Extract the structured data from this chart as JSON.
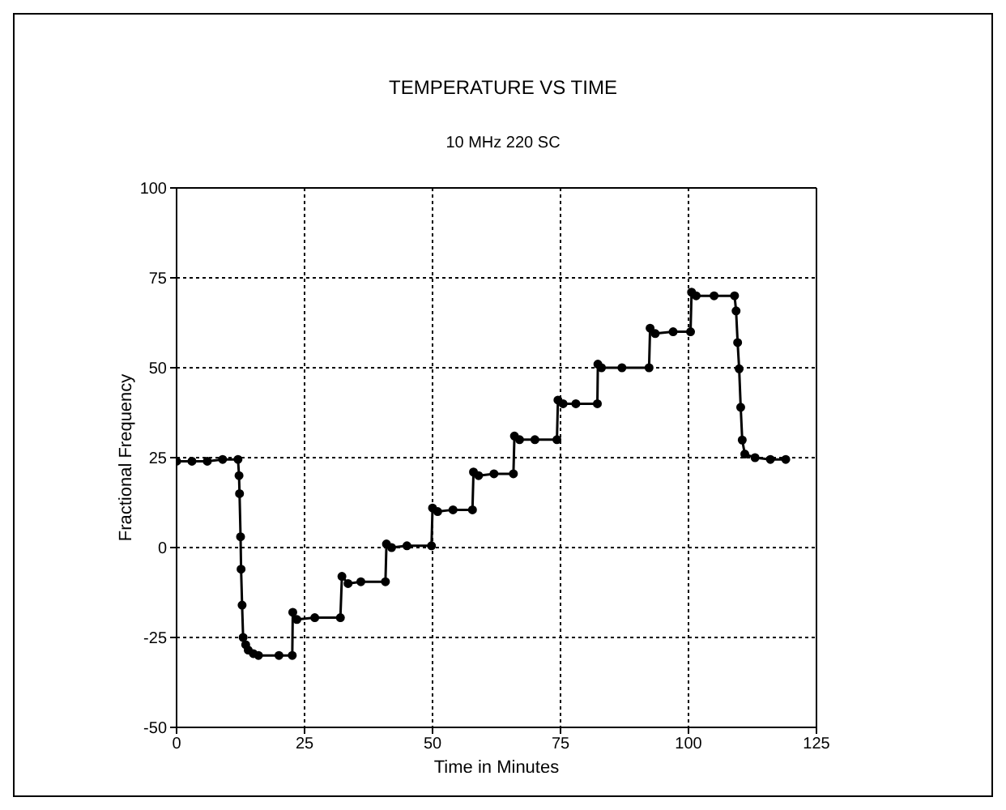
{
  "chart_data": {
    "type": "line",
    "title": "TEMPERATURE VS TIME",
    "subtitle": "10 MHz 220 SC",
    "xlabel": "Time in Minutes",
    "ylabel": "Fractional Frequency",
    "x": [
      0,
      3,
      6,
      9,
      12,
      12.2,
      12.3,
      12.5,
      12.6,
      12.8,
      13,
      13.5,
      14,
      15,
      16,
      20,
      22.6,
      22.7,
      23.5,
      27,
      32,
      32.3,
      33.5,
      36,
      40.8,
      41,
      42,
      45,
      49.8,
      50,
      51,
      54,
      57.8,
      58,
      59,
      62,
      65.8,
      66,
      67,
      70,
      74.3,
      74.5,
      75.5,
      78,
      82.2,
      82.3,
      83,
      87,
      92.3,
      92.5,
      93.5,
      97,
      100.4,
      100.6,
      101.5,
      105,
      109,
      109.3,
      109.6,
      109.9,
      110.2,
      110.5,
      111,
      113,
      116,
      119
    ],
    "values": [
      24,
      24,
      24,
      24.5,
      24.5,
      20,
      15,
      3,
      -6,
      -16,
      -25,
      -27,
      -28.5,
      -29.5,
      -30,
      -30,
      -30,
      -18,
      -20,
      -19.5,
      -19.5,
      -8,
      -10,
      -9.5,
      -9.5,
      1,
      0,
      0.5,
      0.5,
      11,
      10,
      10.5,
      10.5,
      21,
      20,
      20.5,
      20.5,
      31,
      30,
      30,
      30,
      41,
      40,
      40,
      40,
      51,
      50,
      50,
      50,
      61,
      59.5,
      60,
      60,
      71,
      70,
      70,
      70,
      65.8,
      57,
      49.7,
      39,
      29.9,
      26,
      25,
      24.5,
      24.5
    ],
    "color": "#000000",
    "marker": "circle",
    "line_style": "solid",
    "xlim": [
      0,
      125
    ],
    "xticks": [
      0,
      25,
      50,
      75,
      100,
      125
    ],
    "ylim": [
      -50,
      100
    ],
    "yticks": [
      -50,
      -25,
      0,
      25,
      50,
      75,
      100
    ],
    "grid": true
  }
}
